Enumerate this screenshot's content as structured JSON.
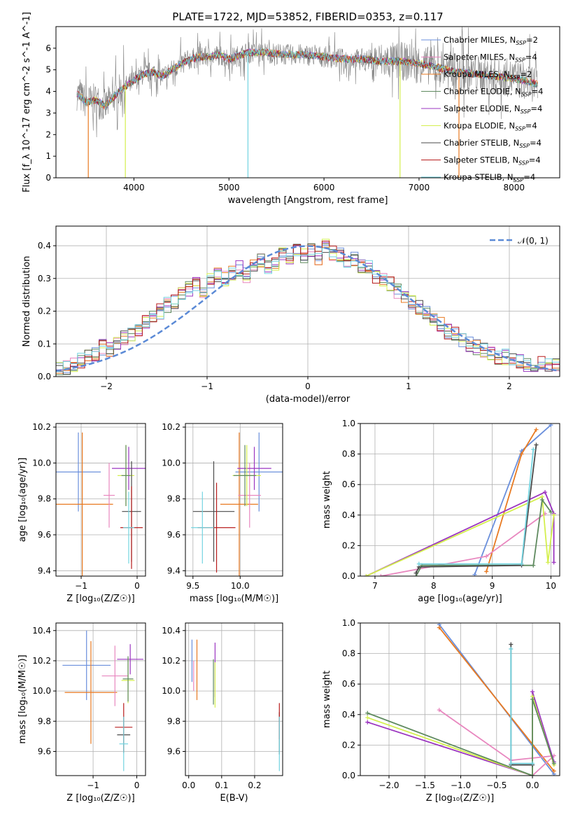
{
  "figure_title": "PLATE=1722, MJD=53852, FIBERID=0353, z=0.117",
  "colors": {
    "chabrier_miles": "#6a8fdc",
    "salpeter_miles": "#e887bf",
    "kroupa_miles": "#e87a22",
    "chabrier_elodie": "#5f8a5f",
    "salpeter_elodie": "#9b35c0",
    "kroupa_elodie": "#d4ef4e",
    "chabrier_stelib": "#4a4a4a",
    "salpeter_stelib": "#b81c1c",
    "kroupa_stelib": "#73d4e0",
    "data": "#808080",
    "normal_curve": "#5b8ad6",
    "grid": "#b0b0b0"
  },
  "chart_data": [
    {
      "id": "spectrum",
      "type": "line",
      "title": "PLATE=1722, MJD=53852, FIBERID=0353, z=0.117",
      "xlabel": "wavelength [Angstrom, rest frame]",
      "ylabel": "Flux [f_λ 10^-17 erg cm^-2 s^-1 A^-1]",
      "xlim": [
        3180,
        8480
      ],
      "ylim": [
        0,
        7
      ],
      "xticks": [
        4000,
        5000,
        6000,
        7000,
        8000
      ],
      "yticks": [
        0,
        1,
        2,
        3,
        4,
        5,
        6
      ],
      "grid": false,
      "legend_position": "right",
      "legend": [
        {
          "key": "chabrier_miles",
          "label": "Chabrier MILES, N",
          "sub": "SSP",
          "suffix": "=2"
        },
        {
          "key": "salpeter_miles",
          "label": "Salpeter MILES, N",
          "sub": "SSP",
          "suffix": "=4"
        },
        {
          "key": "kroupa_miles",
          "label": "Kroupa MILES, N",
          "sub": "SSP",
          "suffix": "=2"
        },
        {
          "key": "chabrier_elodie",
          "label": "Chabrier ELODIE, N",
          "sub": "SSP",
          "suffix": "=4"
        },
        {
          "key": "salpeter_elodie",
          "label": "Salpeter ELODIE, N",
          "sub": "SSP",
          "suffix": "=4"
        },
        {
          "key": "kroupa_elodie",
          "label": "Kroupa ELODIE, N",
          "sub": "SSP",
          "suffix": "=4"
        },
        {
          "key": "chabrier_stelib",
          "label": "Chabrier STELIB, N",
          "sub": "SSP",
          "suffix": "=4"
        },
        {
          "key": "salpeter_stelib",
          "label": "Salpeter STELIB, N",
          "sub": "SSP",
          "suffix": "=4"
        },
        {
          "key": "kroupa_stelib",
          "label": "Kroupa STELIB, N",
          "sub": "SSP",
          "suffix": "=4"
        }
      ],
      "continuum": [
        [
          3400,
          3.9
        ],
        [
          3500,
          3.5
        ],
        [
          3600,
          3.6
        ],
        [
          3700,
          3.3
        ],
        [
          3800,
          3.8
        ],
        [
          3900,
          4.2
        ],
        [
          4000,
          4.5
        ],
        [
          4100,
          4.8
        ],
        [
          4200,
          4.9
        ],
        [
          4300,
          4.7
        ],
        [
          4400,
          5.0
        ],
        [
          4500,
          5.3
        ],
        [
          4600,
          5.5
        ],
        [
          4700,
          5.6
        ],
        [
          4800,
          5.6
        ],
        [
          4900,
          5.7
        ],
        [
          5000,
          5.5
        ],
        [
          5200,
          5.8
        ],
        [
          5400,
          5.8
        ],
        [
          5600,
          5.7
        ],
        [
          5800,
          5.7
        ],
        [
          6000,
          5.6
        ],
        [
          6200,
          5.5
        ],
        [
          6400,
          5.5
        ],
        [
          6600,
          5.4
        ],
        [
          6800,
          5.4
        ],
        [
          7000,
          5.3
        ],
        [
          7200,
          5.1
        ],
        [
          7400,
          4.9
        ],
        [
          7600,
          4.8
        ],
        [
          7800,
          4.7
        ],
        [
          8000,
          4.6
        ],
        [
          8200,
          4.4
        ],
        [
          8250,
          4.3
        ]
      ],
      "dips": [
        {
          "x": 3520,
          "series": "kroupa_miles"
        },
        {
          "x": 3910,
          "series": "kroupa_elodie"
        },
        {
          "x": 5200,
          "series": "kroupa_stelib"
        },
        {
          "x": 6800,
          "series": "kroupa_elodie"
        },
        {
          "x": 7420,
          "series": "kroupa_miles"
        }
      ]
    },
    {
      "id": "residuals",
      "type": "step",
      "xlabel": "(data-model)/error",
      "ylabel": "Normed distribution",
      "xlim": [
        -2.5,
        2.5
      ],
      "ylim": [
        0,
        0.46
      ],
      "xticks": [
        -2,
        -1,
        0,
        1,
        2
      ],
      "yticks": [
        0.0,
        0.1,
        0.2,
        0.3,
        0.4
      ],
      "grid": true,
      "bin_width": 0.1,
      "legend": {
        "label": "𝒩(0, 1)",
        "position": "top-right"
      },
      "histogram": [
        0.03,
        0.03,
        0.04,
        0.05,
        0.06,
        0.07,
        0.09,
        0.08,
        0.1,
        0.12,
        0.13,
        0.14,
        0.17,
        0.19,
        0.2,
        0.22,
        0.23,
        0.25,
        0.27,
        0.28,
        0.26,
        0.29,
        0.31,
        0.3,
        0.32,
        0.33,
        0.31,
        0.34,
        0.36,
        0.33,
        0.35,
        0.37,
        0.36,
        0.38,
        0.37,
        0.39,
        0.36,
        0.4,
        0.38,
        0.37,
        0.35,
        0.36,
        0.34,
        0.33,
        0.31,
        0.3,
        0.28,
        0.26,
        0.25,
        0.23,
        0.21,
        0.19,
        0.17,
        0.16,
        0.14,
        0.13,
        0.11,
        0.1,
        0.09,
        0.08,
        0.07,
        0.06,
        0.06,
        0.05,
        0.05,
        0.04,
        0.04,
        0.04,
        0.03,
        0.03
      ],
      "histogram_start": -2.5
    },
    {
      "id": "age_vs_Z",
      "type": "errorbar",
      "xlabel": "Z [log₁₀(Z/Z☉)]",
      "ylabel": "age  [log₁₀(age/yr)]",
      "xlim": [
        -1.45,
        0.15
      ],
      "ylim": [
        9.37,
        10.22
      ],
      "xticks": [
        -1,
        0
      ],
      "yticks": [
        9.4,
        9.6,
        9.8,
        10.0,
        10.2
      ],
      "grid": true,
      "points": [
        {
          "key": "chabrier_miles",
          "x": -1.05,
          "xerr": 0.4,
          "y": 9.95,
          "yerr": 0.22
        },
        {
          "key": "kroupa_miles",
          "x": -0.98,
          "xerr": 0.55,
          "y": 9.77,
          "yerr": 0.4
        },
        {
          "key": "salpeter_miles",
          "x": -0.5,
          "xerr": 0.1,
          "y": 9.82,
          "yerr": 0.18
        },
        {
          "key": "salpeter_elodie",
          "x": -0.15,
          "xerr": 0.3,
          "y": 9.97,
          "yerr": 0.12
        },
        {
          "key": "kroupa_elodie",
          "x": -0.2,
          "xerr": 0.15,
          "y": 9.93,
          "yerr": 0.17
        },
        {
          "key": "chabrier_elodie",
          "x": -0.2,
          "xerr": 0.08,
          "y": 9.93,
          "yerr": 0.17
        },
        {
          "key": "chabrier_stelib",
          "x": -0.1,
          "xerr": 0.17,
          "y": 9.73,
          "yerr": 0.28
        },
        {
          "key": "salpeter_stelib",
          "x": -0.1,
          "xerr": 0.2,
          "y": 9.64,
          "yerr": 0.23
        },
        {
          "key": "kroupa_stelib",
          "x": -0.15,
          "xerr": 0.1,
          "y": 9.64,
          "yerr": 0.2
        }
      ]
    },
    {
      "id": "age_vs_mass",
      "type": "errorbar",
      "xlabel": "mass [log₁₀(M/M☉)]",
      "ylabel": "",
      "xlim": [
        9.42,
        10.45
      ],
      "ylim": [
        9.37,
        10.22
      ],
      "xticks": [
        9.5,
        10.0
      ],
      "yticks": [
        9.4,
        9.6,
        9.8,
        10.0,
        10.2
      ],
      "grid": true,
      "points": [
        {
          "key": "chabrier_miles",
          "x": 10.2,
          "xerr": 0.25,
          "y": 9.95,
          "yerr": 0.22
        },
        {
          "key": "kroupa_miles",
          "x": 9.99,
          "xerr": 0.2,
          "y": 9.77,
          "yerr": 0.4
        },
        {
          "key": "salpeter_miles",
          "x": 10.1,
          "xerr": 0.12,
          "y": 9.82,
          "yerr": 0.18
        },
        {
          "key": "salpeter_elodie",
          "x": 10.15,
          "xerr": 0.18,
          "y": 9.97,
          "yerr": 0.12
        },
        {
          "key": "kroupa_elodie",
          "x": 10.07,
          "xerr": 0.15,
          "y": 9.93,
          "yerr": 0.17
        },
        {
          "key": "chabrier_elodie",
          "x": 10.05,
          "xerr": 0.12,
          "y": 9.93,
          "yerr": 0.17
        },
        {
          "key": "chabrier_stelib",
          "x": 9.72,
          "xerr": 0.22,
          "y": 9.73,
          "yerr": 0.28
        },
        {
          "key": "salpeter_stelib",
          "x": 9.75,
          "xerr": 0.2,
          "y": 9.64,
          "yerr": 0.25
        },
        {
          "key": "kroupa_stelib",
          "x": 9.6,
          "xerr": 0.12,
          "y": 9.64,
          "yerr": 0.2
        }
      ]
    },
    {
      "id": "weight_vs_age",
      "type": "line",
      "xlabel": "age  [log₁₀(age/yr)]",
      "ylabel": "mass weight",
      "xlim": [
        6.75,
        10.15
      ],
      "ylim": [
        0,
        1
      ],
      "xticks": [
        7,
        8,
        9,
        10
      ],
      "yticks": [
        0.0,
        0.2,
        0.4,
        0.6,
        0.8,
        1.0
      ],
      "grid": true,
      "series": [
        {
          "key": "chabrier_miles",
          "points": [
            [
              8.7,
              0.01
            ],
            [
              9.5,
              0.82
            ],
            [
              10.0,
              0.99
            ]
          ]
        },
        {
          "key": "kroupa_miles",
          "points": [
            [
              8.9,
              0.03
            ],
            [
              9.5,
              0.8
            ],
            [
              9.75,
              0.96
            ]
          ]
        },
        {
          "key": "salpeter_miles",
          "points": [
            [
              7.1,
              0.0
            ],
            [
              8.9,
              0.13
            ],
            [
              9.9,
              0.41
            ]
          ]
        },
        {
          "key": "salpeter_elodie",
          "points": [
            [
              6.85,
              0.0
            ],
            [
              9.9,
              0.55
            ],
            [
              10.05,
              0.41
            ],
            [
              10.05,
              0.09
            ]
          ]
        },
        {
          "key": "kroupa_elodie",
          "points": [
            [
              6.85,
              0.0
            ],
            [
              9.85,
              0.52
            ],
            [
              9.95,
              0.09
            ],
            [
              10.05,
              0.4
            ]
          ]
        },
        {
          "key": "chabrier_elodie",
          "points": [
            [
              7.7,
              0.0
            ],
            [
              7.8,
              0.07
            ],
            [
              9.7,
              0.07
            ],
            [
              9.85,
              0.5
            ],
            [
              10.0,
              0.42
            ]
          ]
        },
        {
          "key": "chabrier_stelib",
          "points": [
            [
              7.7,
              0.02
            ],
            [
              7.75,
              0.06
            ],
            [
              9.5,
              0.07
            ],
            [
              9.75,
              0.86
            ]
          ]
        },
        {
          "key": "kroupa_stelib",
          "points": [
            [
              7.75,
              0.08
            ],
            [
              9.5,
              0.08
            ],
            [
              9.7,
              0.83
            ]
          ]
        }
      ]
    },
    {
      "id": "mass_vs_Z",
      "type": "errorbar",
      "xlabel": "Z [log₁₀(Z/Z☉)]",
      "ylabel": "mass [log₁₀(M/M☉)]",
      "xlim": [
        -1.85,
        0.2
      ],
      "ylim": [
        9.44,
        10.45
      ],
      "xticks": [
        -1,
        0
      ],
      "yticks": [
        9.6,
        9.8,
        10.0,
        10.2,
        10.4
      ],
      "grid": true,
      "points": [
        {
          "key": "chabrier_miles",
          "x": -1.15,
          "xerr": 0.55,
          "y": 10.17,
          "yerr": 0.23
        },
        {
          "key": "kroupa_miles",
          "x": -1.05,
          "xerr": 0.6,
          "y": 9.99,
          "yerr": 0.34
        },
        {
          "key": "salpeter_miles",
          "x": -0.5,
          "xerr": 0.3,
          "y": 10.1,
          "yerr": 0.2
        },
        {
          "key": "salpeter_elodie",
          "x": -0.15,
          "xerr": 0.3,
          "y": 10.21,
          "yerr": 0.1
        },
        {
          "key": "kroupa_elodie",
          "x": -0.2,
          "xerr": 0.15,
          "y": 10.07,
          "yerr": 0.15
        },
        {
          "key": "chabrier_elodie",
          "x": -0.2,
          "xerr": 0.12,
          "y": 10.08,
          "yerr": 0.15
        },
        {
          "key": "chabrier_stelib",
          "x": -0.3,
          "xerr": 0.15,
          "y": 9.71,
          "yerr": 0.12
        },
        {
          "key": "salpeter_stelib",
          "x": -0.3,
          "xerr": 0.2,
          "y": 9.76,
          "yerr": 0.16
        },
        {
          "key": "kroupa_stelib",
          "x": -0.3,
          "xerr": 0.1,
          "y": 9.65,
          "yerr": 0.18
        }
      ]
    },
    {
      "id": "mass_vs_ebv",
      "type": "errorbar",
      "xlabel": "E(B-V)",
      "ylabel": "",
      "xlim": [
        -0.01,
        0.285
      ],
      "ylim": [
        9.44,
        10.45
      ],
      "xticks": [
        0.0,
        0.1,
        0.2
      ],
      "yticks": [
        9.6,
        9.8,
        10.0,
        10.2,
        10.4
      ],
      "grid": true,
      "points": [
        {
          "key": "chabrier_miles",
          "x": 0.01,
          "xerr": 0.0,
          "y": 10.2,
          "yerr": 0.14
        },
        {
          "key": "kroupa_miles",
          "x": 0.025,
          "xerr": 0.0,
          "y": 10.14,
          "yerr": 0.2
        },
        {
          "key": "salpeter_miles",
          "x": 0.015,
          "xerr": 0.0,
          "y": 10.1,
          "yerr": 0.1
        },
        {
          "key": "salpeter_elodie",
          "x": 0.08,
          "xerr": 0.0,
          "y": 10.14,
          "yerr": 0.18
        },
        {
          "key": "kroupa_elodie",
          "x": 0.08,
          "xerr": 0.0,
          "y": 10.04,
          "yerr": 0.15
        },
        {
          "key": "chabrier_elodie",
          "x": 0.075,
          "xerr": 0.0,
          "y": 10.06,
          "yerr": 0.15
        },
        {
          "key": "chabrier_stelib",
          "x": 0.275,
          "xerr": 0.0,
          "y": 9.72,
          "yerr": 0.14
        },
        {
          "key": "salpeter_stelib",
          "x": 0.275,
          "xerr": 0.0,
          "y": 9.8,
          "yerr": 0.12
        },
        {
          "key": "kroupa_stelib",
          "x": 0.275,
          "xerr": 0.0,
          "y": 9.65,
          "yerr": 0.18
        }
      ]
    },
    {
      "id": "weight_vs_Z",
      "type": "line",
      "xlabel": "Z [log₁₀(Z/Z☉)]",
      "ylabel": "mass weight",
      "xlim": [
        -2.4,
        0.38
      ],
      "ylim": [
        0,
        1
      ],
      "xticks": [
        -2.0,
        -1.5,
        -1.0,
        -0.5,
        0.0
      ],
      "yticks": [
        0.0,
        0.2,
        0.4,
        0.6,
        0.8,
        1.0
      ],
      "grid": true,
      "series": [
        {
          "key": "chabrier_miles",
          "points": [
            [
              -1.3,
              0.99
            ],
            [
              0.3,
              0.01
            ]
          ]
        },
        {
          "key": "kroupa_miles",
          "points": [
            [
              -1.3,
              0.97
            ],
            [
              0.3,
              0.03
            ]
          ]
        },
        {
          "key": "salpeter_miles",
          "points": [
            [
              -1.3,
              0.43
            ],
            [
              -0.3,
              0.1
            ],
            [
              0.3,
              0.13
            ],
            [
              0.0,
              0.0
            ]
          ]
        },
        {
          "key": "salpeter_elodie",
          "points": [
            [
              -2.3,
              0.35
            ],
            [
              0.0,
              0.0
            ],
            [
              0.0,
              0.55
            ],
            [
              0.3,
              0.09
            ]
          ]
        },
        {
          "key": "kroupa_elodie",
          "points": [
            [
              -2.3,
              0.38
            ],
            [
              0.0,
              0.0
            ],
            [
              0.0,
              0.52
            ],
            [
              0.3,
              0.07
            ]
          ]
        },
        {
          "key": "chabrier_elodie",
          "points": [
            [
              -2.3,
              0.41
            ],
            [
              0.0,
              0.0
            ],
            [
              0.0,
              0.5
            ],
            [
              0.3,
              0.08
            ]
          ]
        },
        {
          "key": "chabrier_stelib",
          "points": [
            [
              -0.3,
              0.86
            ],
            [
              -0.3,
              0.07
            ],
            [
              0.0,
              0.07
            ]
          ]
        },
        {
          "key": "kroupa_stelib",
          "points": [
            [
              -0.3,
              0.83
            ],
            [
              -0.3,
              0.08
            ],
            [
              0.0,
              0.08
            ]
          ]
        }
      ]
    }
  ]
}
